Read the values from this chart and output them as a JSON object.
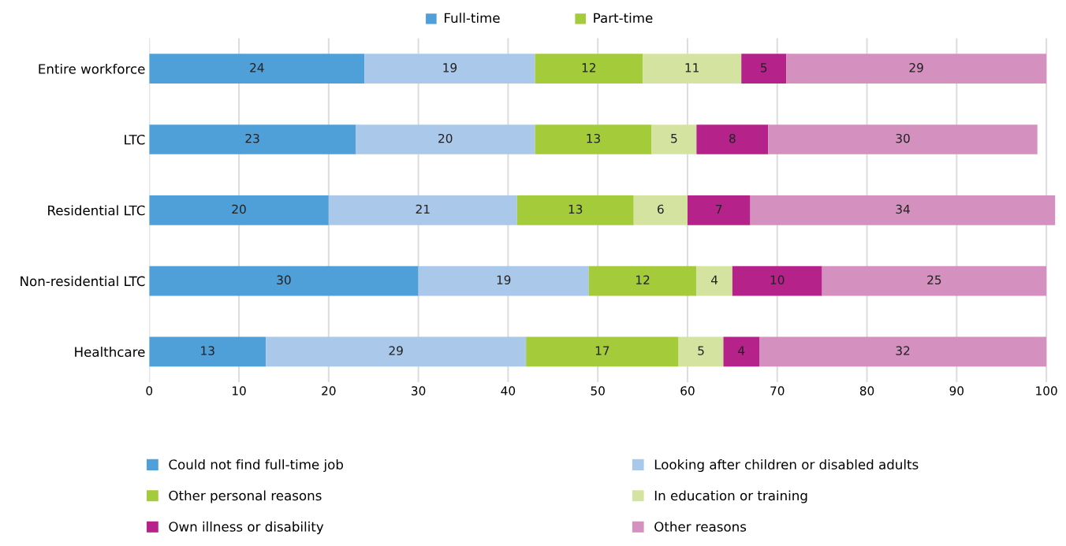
{
  "chart_data": {
    "type": "bar",
    "orientation": "horizontal",
    "stacked": true,
    "categories": [
      "Entire workforce",
      "LTC",
      "Residential LTC",
      "Non-residential LTC",
      "Healthcare"
    ],
    "series": [
      {
        "name": "Could not find full-time job",
        "color": "#4f9fd8",
        "values": [
          24,
          23,
          20,
          30,
          13
        ]
      },
      {
        "name": "Looking after children or disabled adults",
        "color": "#a9c8ea",
        "values": [
          19,
          20,
          21,
          19,
          29
        ]
      },
      {
        "name": "Other personal reasons",
        "color": "#a3cb3a",
        "values": [
          12,
          13,
          13,
          12,
          17
        ]
      },
      {
        "name": "In education or training",
        "color": "#d4e4a0",
        "values": [
          11,
          5,
          6,
          4,
          5
        ]
      },
      {
        "name": "Own illness or disability",
        "color": "#b5228a",
        "values": [
          5,
          8,
          7,
          10,
          4
        ]
      },
      {
        "name": "Other reasons",
        "color": "#d490bf",
        "values": [
          29,
          30,
          34,
          25,
          32
        ]
      }
    ],
    "annotations": [
      "Full-time",
      "Part-time"
    ],
    "xlim": [
      0,
      101
    ],
    "xticks": [
      0,
      10,
      20,
      30,
      40,
      50,
      60,
      70,
      80,
      90,
      100
    ],
    "grid": "x",
    "legend": "bottom",
    "data_labels": true
  }
}
